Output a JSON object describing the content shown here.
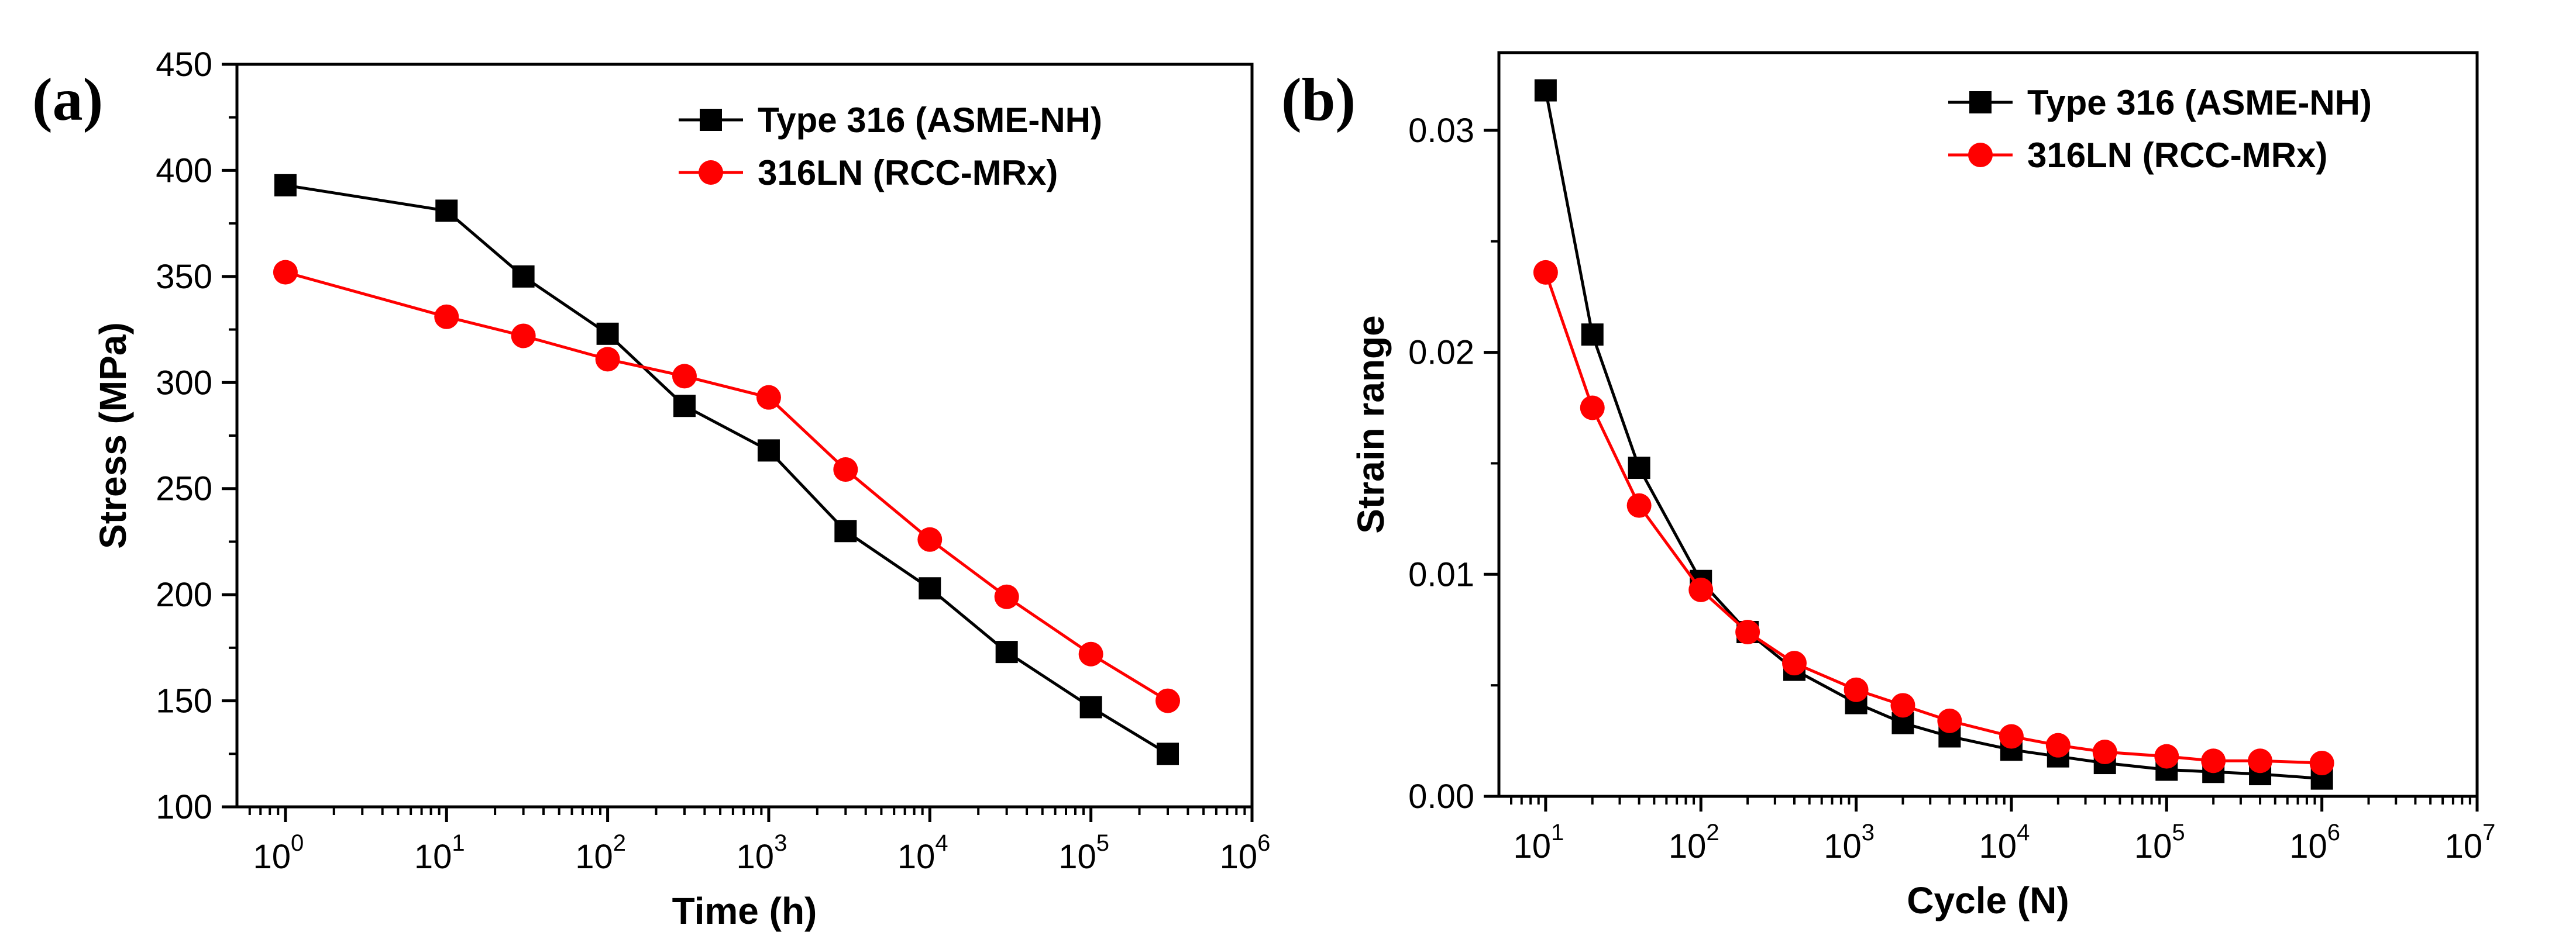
{
  "chart_data": [
    {
      "panel": "(a)",
      "type": "line",
      "title": "",
      "xlabel": "Time (h)",
      "ylabel": "Stress (MPa)",
      "xscale": "log",
      "xlim": [
        0.5,
        1000000
      ],
      "ylim": [
        100,
        450
      ],
      "x_ticks": [
        {
          "base": "10",
          "exp": "0"
        },
        {
          "base": "10",
          "exp": "1"
        },
        {
          "base": "10",
          "exp": "2"
        },
        {
          "base": "10",
          "exp": "3"
        },
        {
          "base": "10",
          "exp": "4"
        },
        {
          "base": "10",
          "exp": "5"
        },
        {
          "base": "10",
          "exp": "6"
        }
      ],
      "y_ticks": [
        "100",
        "150",
        "200",
        "250",
        "300",
        "350",
        "400",
        "450"
      ],
      "legend_position": "top-right",
      "series": [
        {
          "name": "Type 316 (ASME-NH)",
          "color": "#000000",
          "marker": "square",
          "x": [
            1,
            10,
            30,
            100,
            300,
            1000,
            3000,
            10000,
            30000,
            100000,
            300000
          ],
          "y": [
            393,
            381,
            350,
            323,
            289,
            268,
            230,
            203,
            173,
            147,
            125
          ]
        },
        {
          "name": "316LN (RCC-MRx)",
          "color": "#ff0000",
          "marker": "circle",
          "x": [
            1,
            10,
            30,
            100,
            300,
            1000,
            3000,
            10000,
            30000,
            100000,
            300000
          ],
          "y": [
            352,
            331,
            322,
            311,
            303,
            293,
            259,
            226,
            199,
            172,
            150
          ]
        }
      ]
    },
    {
      "panel": "(b)",
      "type": "line",
      "title": "",
      "xlabel": "Cycle (N)",
      "ylabel": "Strain range",
      "xscale": "log",
      "xlim": [
        5,
        10000000
      ],
      "ylim": [
        0,
        0.0335
      ],
      "x_ticks": [
        {
          "base": "10",
          "exp": "1"
        },
        {
          "base": "10",
          "exp": "2"
        },
        {
          "base": "10",
          "exp": "3"
        },
        {
          "base": "10",
          "exp": "4"
        },
        {
          "base": "10",
          "exp": "5"
        },
        {
          "base": "10",
          "exp": "6"
        },
        {
          "base": "10",
          "exp": "7"
        }
      ],
      "y_ticks": [
        "0.00",
        "0.01",
        "0.02",
        "0.03"
      ],
      "legend_position": "top-right",
      "series": [
        {
          "name": "Type 316 (ASME-NH)",
          "color": "#000000",
          "marker": "square",
          "x": [
            10,
            20,
            40,
            100,
            200,
            400,
            1000,
            2000,
            4000,
            10000,
            20000,
            40000,
            100000,
            200000,
            400000,
            1000000
          ],
          "y": [
            0.0318,
            0.0208,
            0.0148,
            0.0097,
            0.0074,
            0.0057,
            0.0042,
            0.0033,
            0.0027,
            0.0021,
            0.0018,
            0.0015,
            0.0012,
            0.0011,
            0.001,
            0.0008
          ]
        },
        {
          "name": "316LN (RCC-MRx)",
          "color": "#ff0000",
          "marker": "circle",
          "x": [
            10,
            20,
            40,
            100,
            200,
            400,
            1000,
            2000,
            4000,
            10000,
            20000,
            40000,
            100000,
            200000,
            400000,
            1000000
          ],
          "y": [
            0.0236,
            0.0175,
            0.0131,
            0.0093,
            0.0074,
            0.006,
            0.0048,
            0.0041,
            0.0034,
            0.0027,
            0.0023,
            0.002,
            0.0018,
            0.0016,
            0.0016,
            0.0015
          ]
        }
      ]
    }
  ]
}
